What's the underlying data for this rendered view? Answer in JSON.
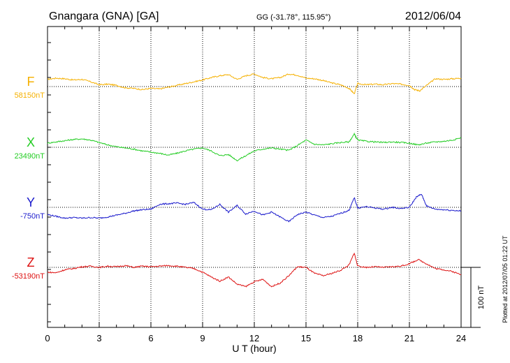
{
  "header": {
    "station": "Gnangara (GNA)  [GA]",
    "coords": "GG (-31.78°, 115.95°)",
    "date": "2012/06/04"
  },
  "footer": {
    "xlabel": "U T (hour)",
    "plotted": "Plotted at 2012/07/05 01:22 UT"
  },
  "scale_bar": {
    "label": "100 nT",
    "value_nT": 100
  },
  "chart_data": {
    "type": "line",
    "xlim": [
      0,
      24
    ],
    "x_ticks": [
      0,
      3,
      6,
      9,
      12,
      15,
      18,
      21,
      24
    ],
    "x_tick_labels": [
      "0",
      "3",
      "6",
      "9",
      "12",
      "15",
      "18",
      "21",
      "24"
    ],
    "grid": true,
    "series": [
      {
        "name": "F",
        "baseline_label": "58150nT",
        "baseline_nT": 58150,
        "color": "#f5b000",
        "x": [
          0,
          0.5,
          1,
          1.5,
          2,
          2.5,
          3,
          3.5,
          4,
          4.5,
          5,
          5.5,
          6,
          6.5,
          7,
          7.5,
          8,
          8.5,
          9,
          9.5,
          10,
          10.5,
          11,
          11.5,
          12,
          12.5,
          13,
          13.5,
          14,
          14.5,
          15,
          15.5,
          16,
          16.5,
          17,
          17.5,
          17.8,
          18,
          18.5,
          19,
          19.5,
          20,
          20.5,
          21,
          21.3,
          21.6,
          22,
          22.5,
          23,
          23.5,
          24
        ],
        "offset_nT": [
          12,
          14,
          13,
          11,
          12,
          8,
          3,
          4,
          2,
          -2,
          -3,
          -5,
          -3,
          -4,
          -1,
          2,
          5,
          8,
          11,
          15,
          18,
          20,
          12,
          18,
          21,
          15,
          13,
          15,
          21,
          19,
          14,
          13,
          10,
          6,
          3,
          -3,
          -12,
          5,
          3,
          4,
          3,
          5,
          4,
          2,
          -5,
          -7,
          2,
          13,
          12,
          13,
          14
        ]
      },
      {
        "name": "X",
        "baseline_label": "23490nT",
        "baseline_nT": 23490,
        "color": "#22cc22",
        "x": [
          0,
          0.5,
          1,
          1.5,
          2,
          2.5,
          3,
          3.5,
          4,
          4.5,
          5,
          5.5,
          6,
          6.5,
          7,
          7.5,
          8,
          8.5,
          9,
          9.5,
          10,
          10.5,
          11,
          11.5,
          12,
          12.5,
          13,
          13.5,
          14,
          14.5,
          15,
          15.5,
          16,
          16.5,
          17,
          17.5,
          17.8,
          18,
          18.5,
          19,
          19.5,
          20,
          20.5,
          21,
          21.5,
          22,
          22.5,
          23,
          23.5,
          24
        ],
        "offset_nT": [
          7,
          9,
          11,
          13,
          14,
          12,
          8,
          4,
          1,
          -1,
          -3,
          -6,
          -8,
          -10,
          -13,
          -10,
          -6,
          -3,
          -1,
          -6,
          -14,
          -12,
          -22,
          -14,
          -6,
          -3,
          -1,
          -3,
          -5,
          3,
          12,
          5,
          4,
          6,
          8,
          9,
          22,
          12,
          10,
          9,
          8,
          9,
          8,
          7,
          4,
          7,
          9,
          10,
          12,
          16
        ]
      },
      {
        "name": "Y",
        "baseline_label": "-750nT",
        "baseline_nT": -750,
        "color": "#1a1acc",
        "x": [
          0,
          0.5,
          1,
          1.5,
          2,
          2.5,
          3,
          3.5,
          4,
          4.5,
          5,
          5.5,
          6,
          6.5,
          7,
          7.5,
          8,
          8.5,
          9,
          9.5,
          10,
          10.5,
          11,
          11.5,
          12,
          12.5,
          13,
          13.5,
          14,
          14.5,
          15,
          15.5,
          16,
          16.5,
          17,
          17.5,
          17.8,
          18,
          18.5,
          19,
          19.5,
          20,
          20.5,
          21,
          21.4,
          21.7,
          22,
          22.5,
          23,
          23.5,
          24
        ],
        "offset_nT": [
          -12,
          -15,
          -18,
          -17,
          -18,
          -17,
          -18,
          -16,
          -13,
          -10,
          -6,
          -4,
          -3,
          5,
          6,
          7,
          5,
          8,
          -3,
          -4,
          5,
          -8,
          3,
          -11,
          -6,
          -13,
          -8,
          -16,
          -24,
          -12,
          -8,
          -13,
          -17,
          -15,
          -10,
          -5,
          16,
          -1,
          1,
          -1,
          -3,
          0,
          -2,
          0,
          17,
          22,
          2,
          -3,
          -4,
          -5,
          -6
        ]
      },
      {
        "name": "Z",
        "baseline_label": "-53190nT",
        "baseline_nT": -53190,
        "color": "#dd1111",
        "x": [
          0,
          0.5,
          1,
          1.5,
          2,
          2.5,
          3,
          3.5,
          4,
          4.5,
          5,
          5.5,
          6,
          6.5,
          7,
          7.5,
          8,
          8.5,
          9,
          9.5,
          10,
          10.5,
          11,
          11.5,
          12,
          12.5,
          13,
          13.5,
          14,
          14.5,
          15,
          15.5,
          16,
          16.5,
          17,
          17.5,
          17.8,
          18,
          18.5,
          19,
          19.5,
          20,
          20.5,
          21,
          21.5,
          22,
          22.5,
          23,
          23.5,
          24
        ],
        "offset_nT": [
          -8,
          -9,
          -4,
          -2,
          1,
          2,
          0,
          2,
          1,
          3,
          0,
          2,
          1,
          2,
          3,
          2,
          0,
          -2,
          -8,
          -16,
          -23,
          -16,
          -28,
          -32,
          -24,
          -20,
          -32,
          -26,
          -14,
          1,
          0,
          -10,
          -14,
          -10,
          -5,
          4,
          24,
          2,
          0,
          1,
          0,
          1,
          2,
          6,
          13,
          6,
          -2,
          -4,
          -7,
          -12
        ]
      }
    ]
  }
}
